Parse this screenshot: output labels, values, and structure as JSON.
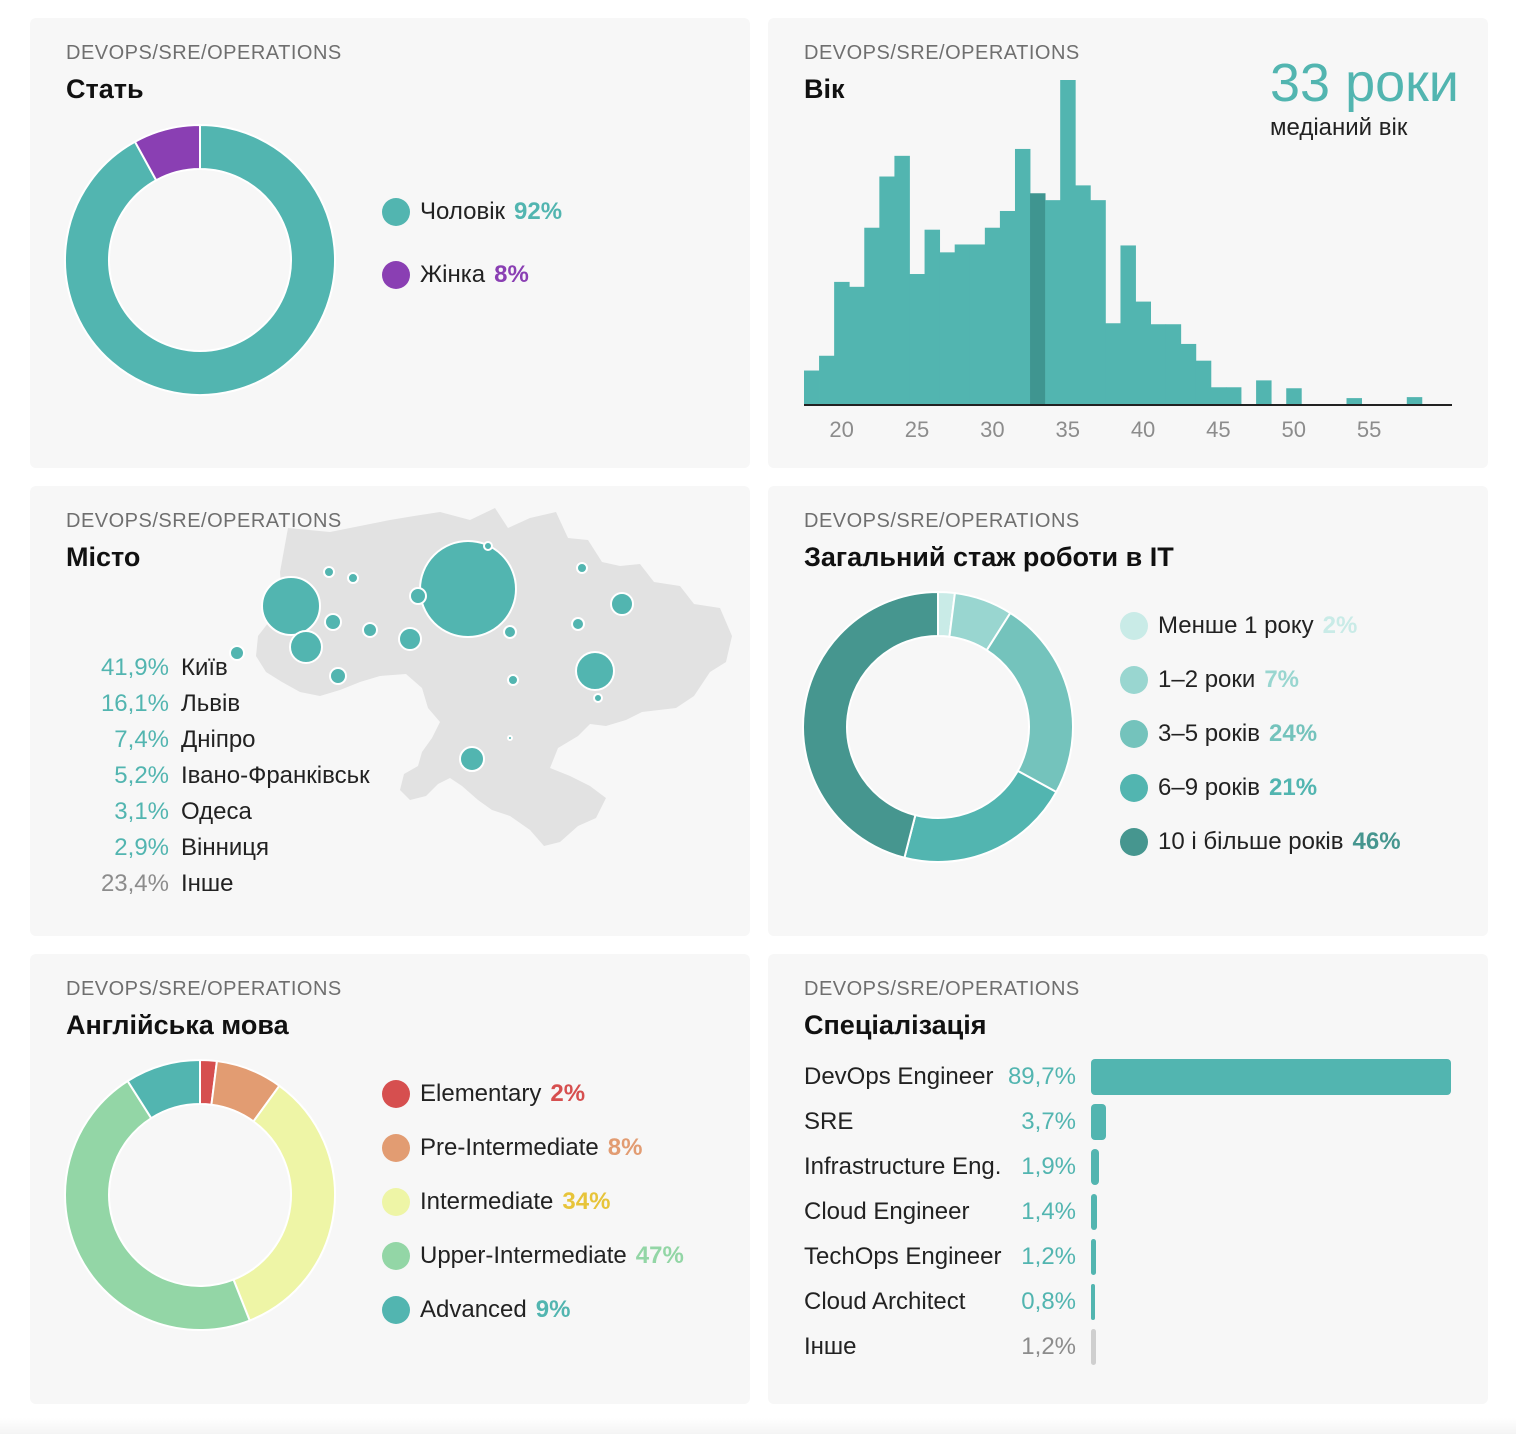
{
  "colors": {
    "teal": "#52b5b0",
    "teal_dark": "#3f9590",
    "purple": "#8a3fb3",
    "grey_text": "#8c8c8c",
    "map_fill": "#e2e2e2"
  },
  "gender": {
    "subtitle": "DEVOPS/SRE/OPERATIONS",
    "title": "Стать",
    "chart_data": {
      "type": "pie",
      "slices": [
        {
          "label": "Чоловік",
          "value_label": "92%",
          "value": 92,
          "color": "#52b5b0"
        },
        {
          "label": "Жінка",
          "value_label": "8%",
          "value": 8,
          "color": "#8a3fb3"
        }
      ]
    }
  },
  "age": {
    "subtitle": "DEVOPS/SRE/OPERATIONS",
    "title": "Вік",
    "median_value": "33 роки",
    "median_label": "медіаний вік",
    "chart_data": {
      "type": "bar",
      "median_age": 33,
      "x_range": [
        18,
        61
      ],
      "xticks": [
        "20",
        "25",
        "30",
        "35",
        "40",
        "45",
        "50",
        "55"
      ],
      "xtick_values": [
        20,
        25,
        30,
        35,
        40,
        45,
        50,
        55
      ],
      "ylim": [
        0,
        330
      ],
      "ages": [
        18,
        19,
        20,
        21,
        22,
        23,
        24,
        25,
        26,
        27,
        28,
        29,
        30,
        31,
        32,
        33,
        34,
        35,
        36,
        37,
        38,
        39,
        40,
        41,
        42,
        43,
        44,
        45,
        46,
        47,
        48,
        49,
        50,
        51,
        52,
        53,
        54,
        55,
        56,
        57,
        58,
        59,
        60
      ],
      "values": [
        35,
        50,
        125,
        120,
        180,
        232,
        253,
        133,
        178,
        155,
        163,
        163,
        180,
        197,
        260,
        215,
        208,
        330,
        223,
        208,
        83,
        162,
        105,
        82,
        82,
        62,
        45,
        18,
        18,
        0,
        25,
        0,
        17,
        0,
        0,
        0,
        7,
        0,
        0,
        0,
        8,
        0,
        0
      ]
    }
  },
  "city": {
    "subtitle": "DEVOPS/SRE/OPERATIONS",
    "title": "Місто",
    "rows": [
      {
        "pct": "41,9%",
        "name": "Київ"
      },
      {
        "pct": "16,1%",
        "name": "Львів"
      },
      {
        "pct": "7,4%",
        "name": "Дніпро"
      },
      {
        "pct": "5,2%",
        "name": "Івано-Франківськ"
      },
      {
        "pct": "3,1%",
        "name": "Одеса"
      },
      {
        "pct": "2,9%",
        "name": "Вінниця"
      },
      {
        "pct": "23,4%",
        "name": "Інше"
      }
    ]
  },
  "experience": {
    "subtitle": "DEVOPS/SRE/OPERATIONS",
    "title": "Загальний стаж роботи в IT",
    "chart_data": {
      "type": "pie",
      "slices": [
        {
          "label": "Менше 1 року",
          "value_label": "2%",
          "value": 2,
          "color": "#c9ebe7"
        },
        {
          "label": "1–2 роки",
          "value_label": "7%",
          "value": 7,
          "color": "#99d6d0"
        },
        {
          "label": "3–5 років",
          "value_label": "24%",
          "value": 24,
          "color": "#74c3bc"
        },
        {
          "label": "6–9 років",
          "value_label": "21%",
          "value": 21,
          "color": "#52b5b0"
        },
        {
          "label": "10 і більше років",
          "value_label": "46%",
          "value": 46,
          "color": "#46968f"
        }
      ]
    }
  },
  "english": {
    "subtitle": "DEVOPS/SRE/OPERATIONS",
    "title": "Англійська мова",
    "chart_data": {
      "type": "pie",
      "slices": [
        {
          "label": "Elementary",
          "value_label": "2%",
          "value": 2,
          "color": "#d64f4f"
        },
        {
          "label": "Pre-Intermediate",
          "value_label": "8%",
          "value": 8,
          "color": "#e29c72"
        },
        {
          "label": "Intermediate",
          "value_label": "34%",
          "value": 34,
          "color": "#eef5a6",
          "text_color": "#e7c43a"
        },
        {
          "label": "Upper-Intermediate",
          "value_label": "47%",
          "value": 47,
          "color": "#93d6a6"
        },
        {
          "label": "Advanced",
          "value_label": "9%",
          "value": 9,
          "color": "#52b5b0"
        }
      ]
    }
  },
  "specialization": {
    "subtitle": "DEVOPS/SRE/OPERATIONS",
    "title": "Спеціалізація",
    "chart_data": {
      "type": "bar",
      "orientation": "horizontal",
      "categories": [
        "DevOps Engineer",
        "SRE",
        "Infrastructure Eng.",
        "Cloud Engineer",
        "TechOps Engineer",
        "Cloud Architect",
        "Інше"
      ],
      "value_labels": [
        "89,7%",
        "3,7%",
        "1,9%",
        "1,4%",
        "1,2%",
        "0,8%",
        "1,2%"
      ],
      "values": [
        89.7,
        3.7,
        1.9,
        1.4,
        1.2,
        0.8,
        1.2
      ],
      "bar_colors": [
        "#52b5b0",
        "#52b5b0",
        "#52b5b0",
        "#52b5b0",
        "#52b5b0",
        "#52b5b0",
        "#cfcfcf"
      ]
    }
  }
}
